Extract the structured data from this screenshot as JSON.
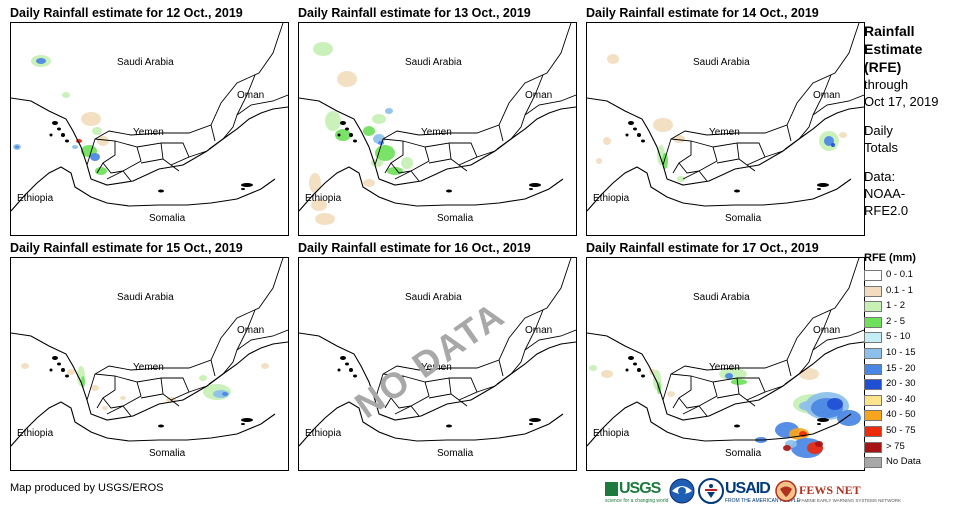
{
  "panels": [
    {
      "title": "Daily Rainfall estimate for 12 Oct., 2019",
      "no_data": false
    },
    {
      "title": "Daily Rainfall estimate for 13 Oct., 2019",
      "no_data": false
    },
    {
      "title": "Daily Rainfall estimate for 14 Oct., 2019",
      "no_data": false
    },
    {
      "title": "Daily Rainfall estimate for 15 Oct., 2019",
      "no_data": false
    },
    {
      "title": "Daily Rainfall estimate for 16 Oct., 2019",
      "no_data": true
    },
    {
      "title": "Daily Rainfall estimate for 17 Oct., 2019",
      "no_data": false
    }
  ],
  "map_labels": {
    "saudi": "Saudi Arabia",
    "oman": "Oman",
    "yemen": "Yemen",
    "ethiopia": "Ethiopia",
    "somalia": "Somalia"
  },
  "no_data_stamp": "NO DATA",
  "sidebar": {
    "title_line1": "Rainfall",
    "title_line2": "Estimate",
    "title_line3": "(RFE)",
    "through": "through",
    "date": "Oct 17, 2019",
    "daily": "Daily",
    "totals": "Totals",
    "data_label": "Data:",
    "source_line1": "NOAA-",
    "source_line2": "RFE2.0"
  },
  "legend": {
    "title": "RFE (mm)",
    "items": [
      {
        "label": "0 - 0.1",
        "color": "#ffffff"
      },
      {
        "label": "0.1 - 1",
        "color": "#f2dcbd"
      },
      {
        "label": "1 - 2",
        "color": "#c6f0b4"
      },
      {
        "label": "2 - 5",
        "color": "#6ee05a"
      },
      {
        "label": "5 - 10",
        "color": "#c4ecf4"
      },
      {
        "label": "10 - 15",
        "color": "#8cbfea"
      },
      {
        "label": "15 - 20",
        "color": "#4a86e4"
      },
      {
        "label": "20 - 30",
        "color": "#1f4fd4"
      },
      {
        "label": "30 - 40",
        "color": "#fce48c"
      },
      {
        "label": "40 - 50",
        "color": "#f7a51c"
      },
      {
        "label": "50 - 75",
        "color": "#ec2a0c"
      },
      {
        "label": "> 75",
        "color": "#a61414"
      },
      {
        "label": "No Data",
        "color": "#a8a8a8"
      }
    ]
  },
  "credit": "Map produced by USGS/EROS",
  "logos": {
    "usgs": "USGS",
    "usgs_tag": "science for a changing world",
    "usaid": "USAID",
    "usaid_tag": "FROM THE AMERICAN PEOPLE",
    "fews": "FEWS NET",
    "fews_tag": "FAMINE EARLY WARNING SYSTEMS NETWORK"
  }
}
